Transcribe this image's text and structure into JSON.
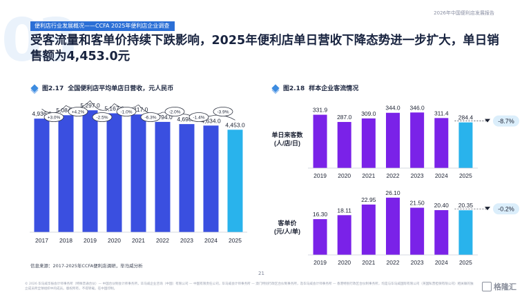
{
  "report_tag": "2026年中国便利店发展报告",
  "deco_number": "03",
  "section_tag": "便利店行业发展概况——CCFA 2025年便利店企业调查",
  "headline": "受客流量和客单价持续下跌影响，2025年便利店单日营收下降态势进一步扩大，单日销售额为4,453.0元",
  "colors": {
    "bar_primary": "#3a4fe0",
    "bar_latest": "#29b3ec",
    "bar_purple": "#7a22e8",
    "accent": "#2b6fd6"
  },
  "figures": {
    "fig1": {
      "num": "图2.17",
      "title": "全国便利店平均单店日营收，元人民币"
    },
    "fig2": {
      "num": "图2.18",
      "title": "样本企业客流情况"
    }
  },
  "chart_data": [
    {
      "type": "bar",
      "categories": [
        "2017",
        "2018",
        "2019",
        "2020",
        "2021",
        "2022",
        "2023",
        "2024",
        "2025"
      ],
      "values": [
        4936.0,
        5084.0,
        5297.0,
        5167.0,
        5117.0,
        4794.0,
        4698.0,
        4634.0,
        4453.0
      ],
      "value_labels": [
        "4,936.0",
        "5,084.0",
        "5,297.0",
        "5,167.0",
        "5,117.0",
        "4,794.0",
        "4,698.0",
        "4,634.0",
        "4,453.0"
      ],
      "growth_labels": [
        "+3.0%",
        "+4.2%",
        "-2.5%",
        "-1.0%",
        "-6.3%",
        "-2.0%",
        "-1.4%",
        "-3.9%"
      ],
      "ylim": [
        0,
        5600
      ]
    },
    {
      "type": "bar",
      "ylabel": "单日来客数\n(人/店/日)",
      "categories": [
        "2019",
        "2020",
        "2021",
        "2022",
        "2023",
        "2024",
        "2025"
      ],
      "values": [
        331.9,
        287.0,
        309.0,
        344.0,
        346.0,
        311.4,
        284.4
      ],
      "value_labels": [
        "331.9",
        "287.0",
        "309.0",
        "344.0",
        "346.0",
        "311.4",
        "284.4"
      ],
      "change_label": "-8.7%",
      "ylim": [
        0,
        360
      ]
    },
    {
      "type": "bar",
      "ylabel": "客单价\n(元/人/单)",
      "categories": [
        "2019",
        "2020",
        "2021",
        "2022",
        "2023",
        "2024",
        "2025"
      ],
      "values": [
        16.3,
        18.11,
        22.95,
        26.1,
        21.5,
        20.4,
        20.35
      ],
      "value_labels": [
        "16.30",
        "18.11",
        "22.95",
        "26.10",
        "21.50",
        "20.40",
        "20.35"
      ],
      "change_label": "-0.2%",
      "ylim": [
        0,
        27
      ]
    }
  ],
  "source": "信息来源：2017-2025年CCFA便利店调研，毕马威分析",
  "page_number": "21",
  "footer": "© 2026 毕马威华振会计师事务所（特殊普通合伙）— 中国合伙制会计师事务所，毕马威企业咨询（中国）有限公司 — 中国有限责任公司，毕马威会计师事务所 — 澳门特别行政区合伙制事务所，及毕马威会计师事务所 — 香港特别行政区合伙制事务所，均是与毕马威国际有限公司（英国私营担保有限公司）相关联的独立成员所全球组织中的成员。版权所有，不得转载。在中国印制。",
  "watermark": "格隆汇"
}
